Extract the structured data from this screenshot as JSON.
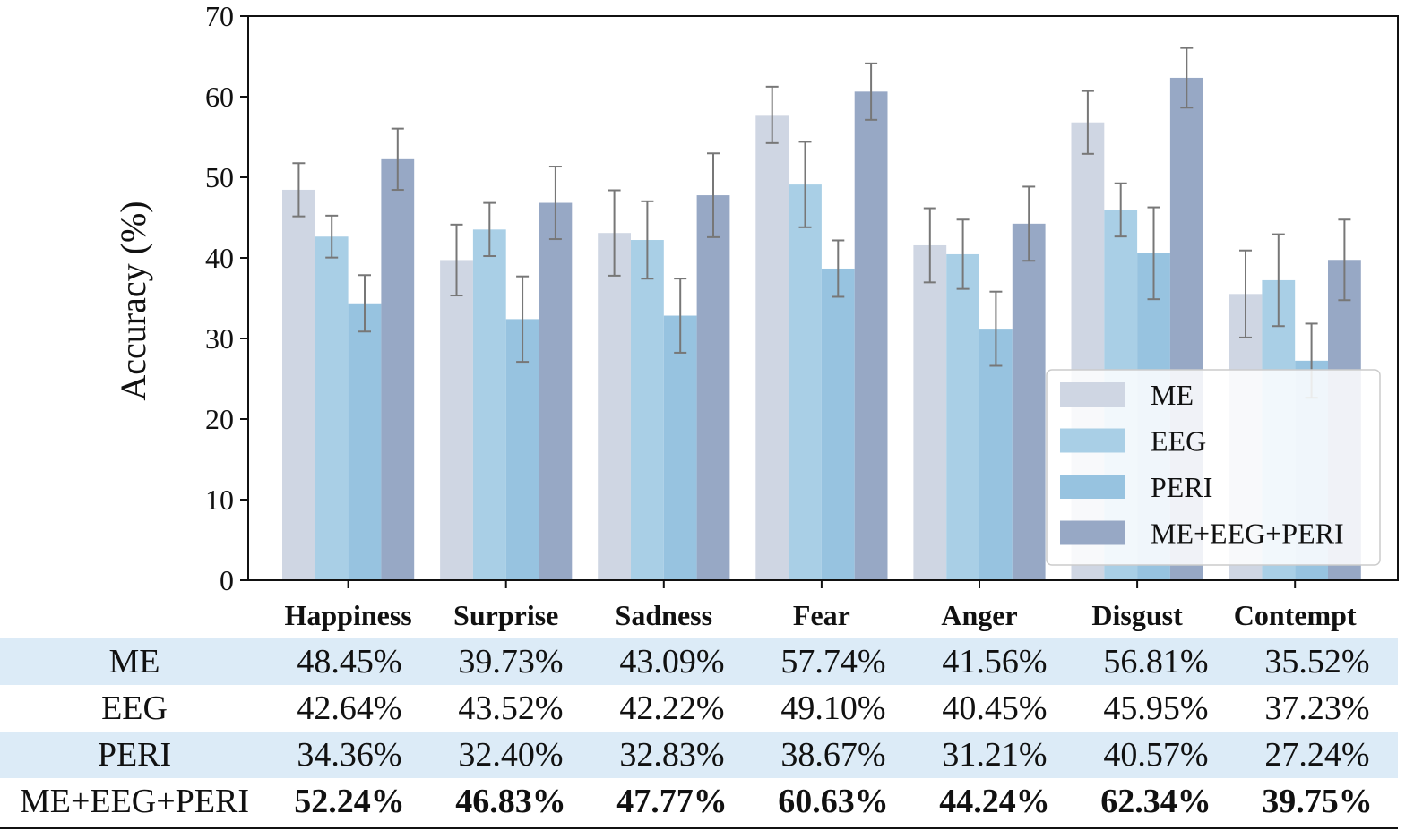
{
  "chart_data": {
    "type": "bar",
    "ylabel": "Accuracy (%)",
    "xlabel": "",
    "ylim": [
      0,
      70
    ],
    "yticks": [
      0,
      10,
      20,
      30,
      40,
      50,
      60,
      70
    ],
    "categories": [
      "Happiness",
      "Surprise",
      "Sadness",
      "Fear",
      "Anger",
      "Disgust",
      "Contempt"
    ],
    "series": [
      {
        "name": "ME",
        "color": "#cfd6e3",
        "values": [
          48.45,
          39.73,
          43.09,
          57.74,
          41.56,
          56.81,
          35.52
        ],
        "errors": [
          3.3,
          4.4,
          5.3,
          3.5,
          4.6,
          3.9,
          5.4
        ]
      },
      {
        "name": "EEG",
        "color": "#a9cfe6",
        "values": [
          42.64,
          43.52,
          42.22,
          49.1,
          40.45,
          45.95,
          37.23
        ],
        "errors": [
          2.6,
          3.3,
          4.8,
          5.3,
          4.3,
          3.3,
          5.7
        ]
      },
      {
        "name": "PERI",
        "color": "#97c3e0",
        "values": [
          34.36,
          32.4,
          32.83,
          38.67,
          31.21,
          40.57,
          27.24
        ],
        "errors": [
          3.5,
          5.3,
          4.6,
          3.5,
          4.6,
          5.7,
          4.6
        ]
      },
      {
        "name": "ME+EEG+PERI",
        "color": "#97a8c5",
        "values": [
          52.24,
          46.83,
          47.77,
          60.63,
          44.24,
          62.34,
          39.75
        ],
        "errors": [
          3.8,
          4.5,
          5.2,
          3.5,
          4.6,
          3.7,
          5.0
        ]
      }
    ],
    "error_color": "#777777",
    "legend_position": "lower-right",
    "grid": false
  },
  "table": {
    "rows": [
      {
        "name": "ME",
        "values": [
          "48.45%",
          "39.73%",
          "43.09%",
          "57.74%",
          "41.56%",
          "56.81%",
          "35.52%"
        ]
      },
      {
        "name": "EEG",
        "values": [
          "42.64%",
          "43.52%",
          "42.22%",
          "49.10%",
          "40.45%",
          "45.95%",
          "37.23%"
        ]
      },
      {
        "name": "PERI",
        "values": [
          "34.36%",
          "32.40%",
          "32.83%",
          "38.67%",
          "31.21%",
          "40.57%",
          "27.24%"
        ]
      },
      {
        "name": "ME+EEG+PERI",
        "values": [
          "52.24%",
          "46.83%",
          "47.77%",
          "60.63%",
          "44.24%",
          "62.34%",
          "39.75%"
        ]
      }
    ],
    "shaded_color": "#dcebf7"
  }
}
